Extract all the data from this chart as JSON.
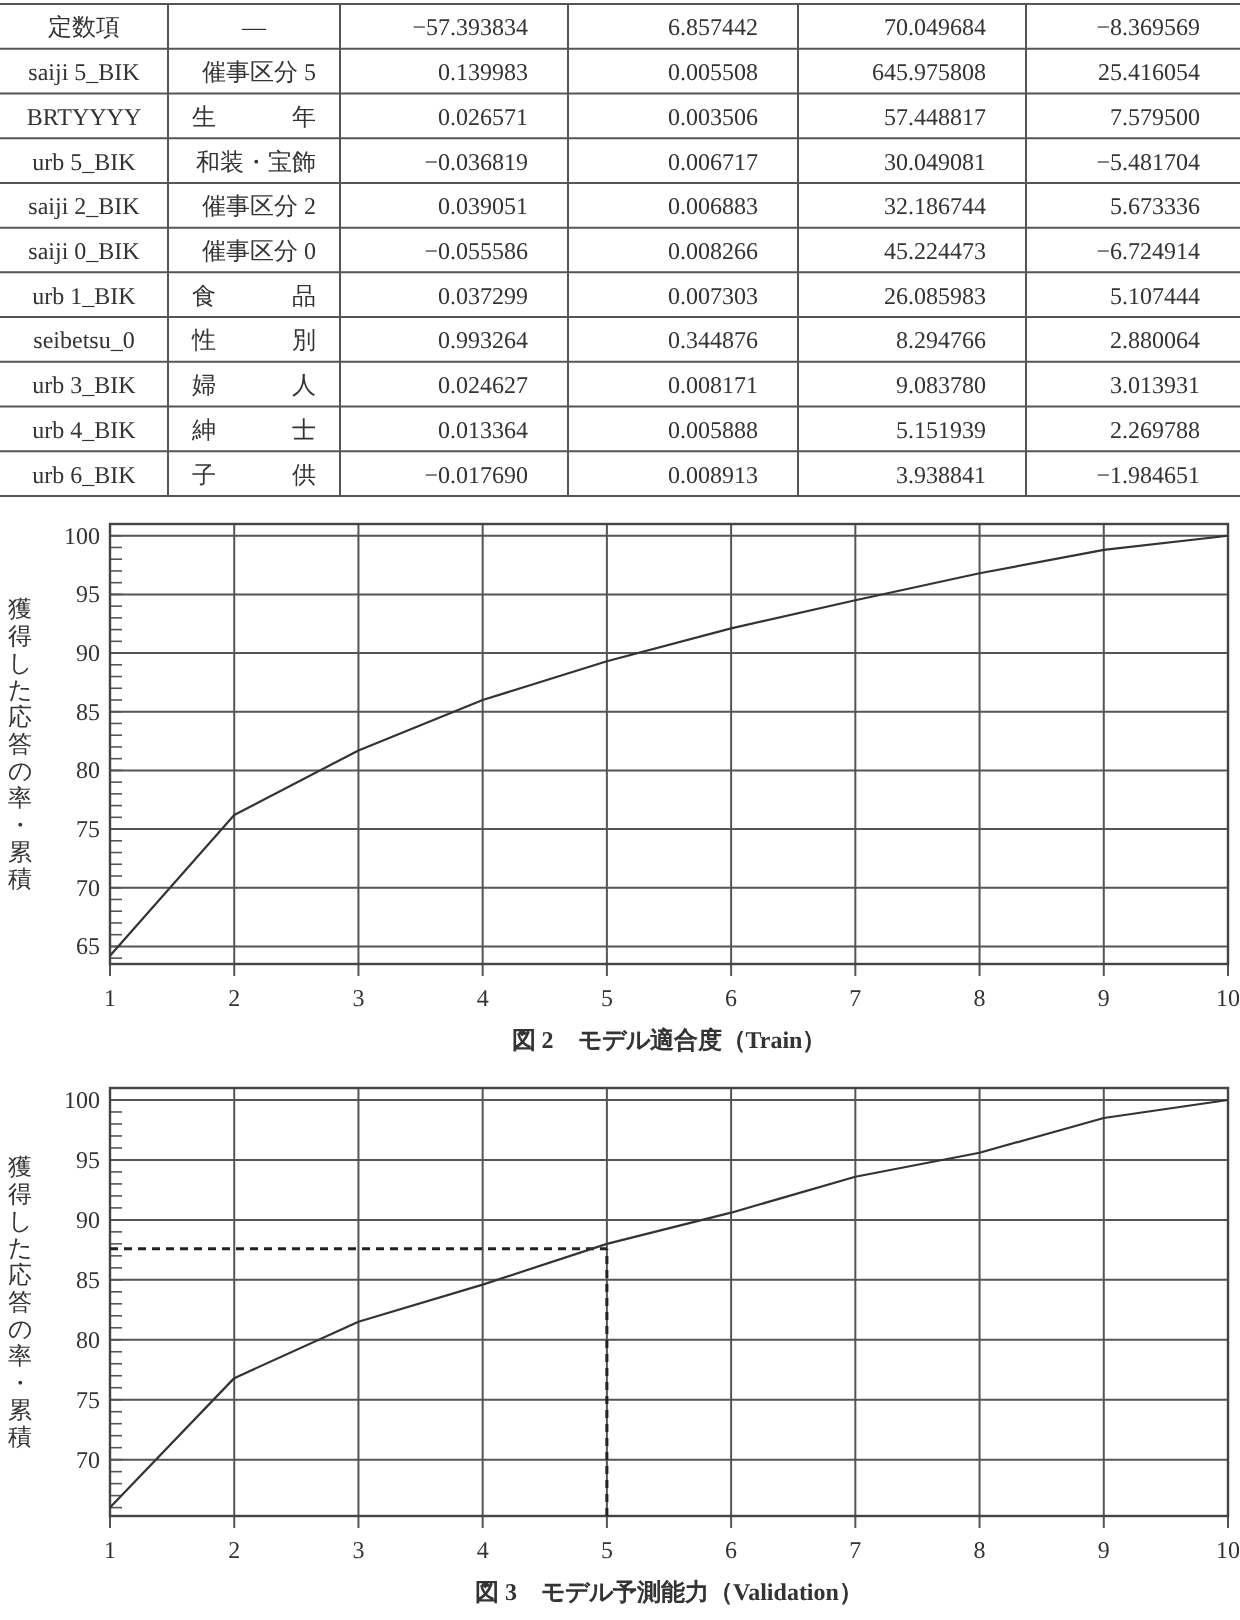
{
  "chart_data": [
    {
      "type": "other",
      "annotations": [
        "定数項",
        "—",
        "−57.393834",
        "6.857442",
        "70.049684",
        "−8.369569",
        "saiji 5_BIK",
        "催事区分 5",
        "0.139983",
        "0.005508",
        "645.975808",
        "25.416054",
        "BRTYYYY",
        "生年",
        "0.026571",
        "0.003506",
        "57.448817",
        "7.579500",
        "urb 5_BIK",
        "和装・宝飾",
        "−0.036819",
        "0.006717",
        "30.049081",
        "−5.481704",
        "saiji 2_BIK",
        "催事区分 2",
        "0.039051",
        "0.006883",
        "32.186744",
        "5.673336",
        "saiji 0_BIK",
        "催事区分 0",
        "−0.055586",
        "0.008266",
        "45.224473",
        "−6.724914",
        "urb 1_BIK",
        "食品",
        "0.037299",
        "0.007303",
        "26.085983",
        "5.107444",
        "seibetsu_0",
        "性別",
        "0.993264",
        "0.344876",
        "8.294766",
        "2.880064",
        "urb 3_BIK",
        "婦人",
        "0.024627",
        "0.008171",
        "9.083780",
        "3.013931",
        "urb 4_BIK",
        "紳士",
        "0.013364",
        "0.005888",
        "5.151939",
        "2.269788",
        "urb 6_BIK",
        "子供",
        "−0.017690",
        "0.008913",
        "3.938841",
        "−1.984651"
      ]
    },
    {
      "type": "line",
      "title": "図 2　モデル適合度（Train）",
      "ylabel": "獲得した応答の率・累積",
      "x": [
        1,
        2,
        3,
        4,
        5,
        6,
        7,
        8,
        9,
        10
      ],
      "values": [
        64.2,
        76.2,
        81.7,
        86.0,
        89.3,
        92.1,
        94.5,
        96.8,
        98.8,
        100
      ],
      "color": "#333333",
      "xlim": [
        1,
        10
      ],
      "xticks": [
        1,
        2,
        3,
        4,
        5,
        6,
        7,
        8,
        9,
        10
      ],
      "ylim": [
        63.5,
        101
      ],
      "yticks": [
        65,
        70,
        75,
        80,
        85,
        90,
        95,
        100
      ],
      "grid": true,
      "marker": "none",
      "line_style": "solid"
    },
    {
      "type": "line",
      "title": "図 3　モデル予測能力（Validation）",
      "ylabel": "獲得した応答の率・累積",
      "x": [
        1,
        2,
        3,
        4,
        5,
        6,
        7,
        8,
        9,
        10
      ],
      "values": [
        66.0,
        76.8,
        81.5,
        84.6,
        88.0,
        90.6,
        93.6,
        95.6,
        98.5,
        100
      ],
      "color": "#333333",
      "xlim": [
        1,
        10
      ],
      "xticks": [
        1,
        2,
        3,
        4,
        5,
        6,
        7,
        8,
        9,
        10
      ],
      "ylim": [
        65.3,
        101
      ],
      "yticks": [
        70,
        75,
        80,
        85,
        90,
        95,
        100
      ],
      "grid": true,
      "marker": "none",
      "line_style": "solid",
      "ref_lines": [
        {
          "axis": "x",
          "value": 5,
          "color": "#222222",
          "line_style": "dashed"
        },
        {
          "axis": "y",
          "value": 87.6,
          "color": "#222222",
          "line_style": "dashed"
        }
      ]
    }
  ]
}
